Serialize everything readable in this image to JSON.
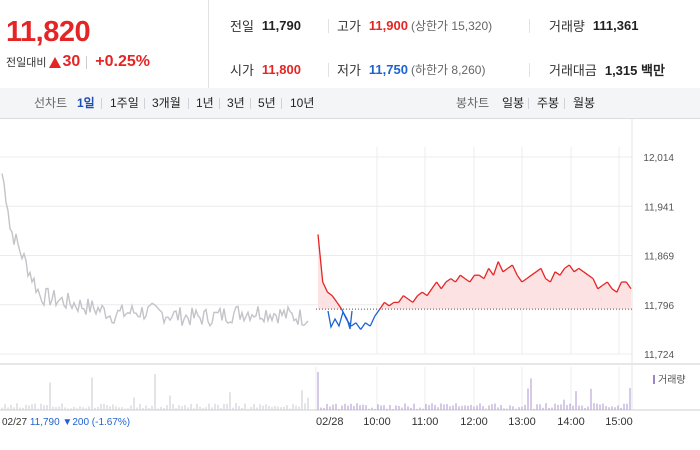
{
  "quote": {
    "price": "11,820",
    "change_label": "전일대비",
    "change_value": "30",
    "change_pct": "+0.25%",
    "up_color": "#e52525",
    "down_color": "#1e63d0"
  },
  "stats": {
    "prev": {
      "label": "전일",
      "value": "11,790"
    },
    "high": {
      "label": "고가",
      "value": "11,900",
      "sub": "(상한가 15,320)"
    },
    "volume": {
      "label": "거래량",
      "value": "111,361"
    },
    "open": {
      "label": "시가",
      "value": "11,800"
    },
    "low": {
      "label": "저가",
      "value": "11,750",
      "sub": "(하한가 8,260)"
    },
    "amount": {
      "label": "거래대금",
      "value": "1,315 백만"
    }
  },
  "tabs": {
    "line_header": "선차트",
    "line_tabs": [
      "1일",
      "1주일",
      "3개월",
      "1년",
      "3년",
      "5년",
      "10년"
    ],
    "active": "1일",
    "candle_header": "봉차트",
    "candle_tabs": [
      "일봉",
      "주봉",
      "월봉"
    ]
  },
  "chart_data": {
    "type": "line",
    "title": "",
    "xlabel": "",
    "ylabel": "",
    "y_ticks": [
      "12,014",
      "11,941",
      "11,869",
      "11,796",
      "11,724"
    ],
    "ylim": [
      11724,
      12014
    ],
    "baseline": 11790,
    "x_ticks": [
      "02/28",
      "10:00",
      "11:00",
      "12:00",
      "13:00",
      "14:00",
      "15:00"
    ],
    "prev_day_label": "02/27",
    "prev_day_close": "11,790",
    "prev_day_change": "▼200 (-1.67%)",
    "volume_legend": "거래량",
    "series": [
      {
        "values": [
          11900,
          11830,
          11815,
          11810,
          11800,
          11790,
          11775,
          11765,
          11770,
          11760,
          11770,
          11765,
          11780,
          11790,
          11800,
          11795,
          11800,
          11800,
          11810,
          11805,
          11800,
          11810,
          11815,
          11810,
          11820,
          11830,
          11820,
          11830,
          11835,
          11830,
          11840,
          11835,
          11830,
          11840,
          11840,
          11835,
          11850,
          11840,
          11860,
          11845,
          11850,
          11855,
          11840,
          11830,
          11835,
          11840,
          11845,
          11850,
          11835,
          11830,
          11845,
          11840,
          11850,
          11855,
          11845,
          11850,
          11845,
          11840,
          11835,
          11820,
          11825,
          11830,
          11820,
          11815,
          11830,
          11830,
          11820
        ]
      }
    ]
  }
}
